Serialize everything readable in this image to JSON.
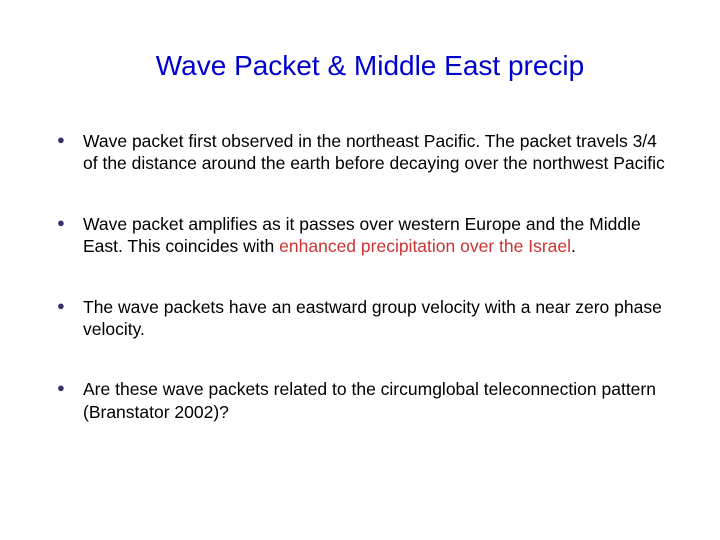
{
  "title": {
    "text": "Wave Packet & Middle East precip",
    "color": "#0000cc",
    "fontsize": 28,
    "weight": "normal"
  },
  "bullet_style": {
    "marker_color": "#333366",
    "marker_fontsize": 13,
    "text_color": "#000000",
    "text_fontsize": 17.5,
    "highlight_color": "#cc3333"
  },
  "bullets": [
    {
      "pre": "Wave packet first observed in the northeast Pacific. The packet travels 3/4 of the distance around the earth before decaying over the northwest Pacific",
      "highlight": "",
      "post": ""
    },
    {
      "pre": "Wave packet amplifies as it passes over western Europe and the Middle East.  This coincides with ",
      "highlight": "enhanced precipitation over the Israel",
      "post": "."
    },
    {
      "pre": "The wave packets have an eastward group velocity with a near zero phase velocity.",
      "highlight": "",
      "post": ""
    },
    {
      "pre": "Are these wave packets related to the circumglobal teleconnection pattern (Branstator 2002)?",
      "highlight": "",
      "post": ""
    }
  ]
}
